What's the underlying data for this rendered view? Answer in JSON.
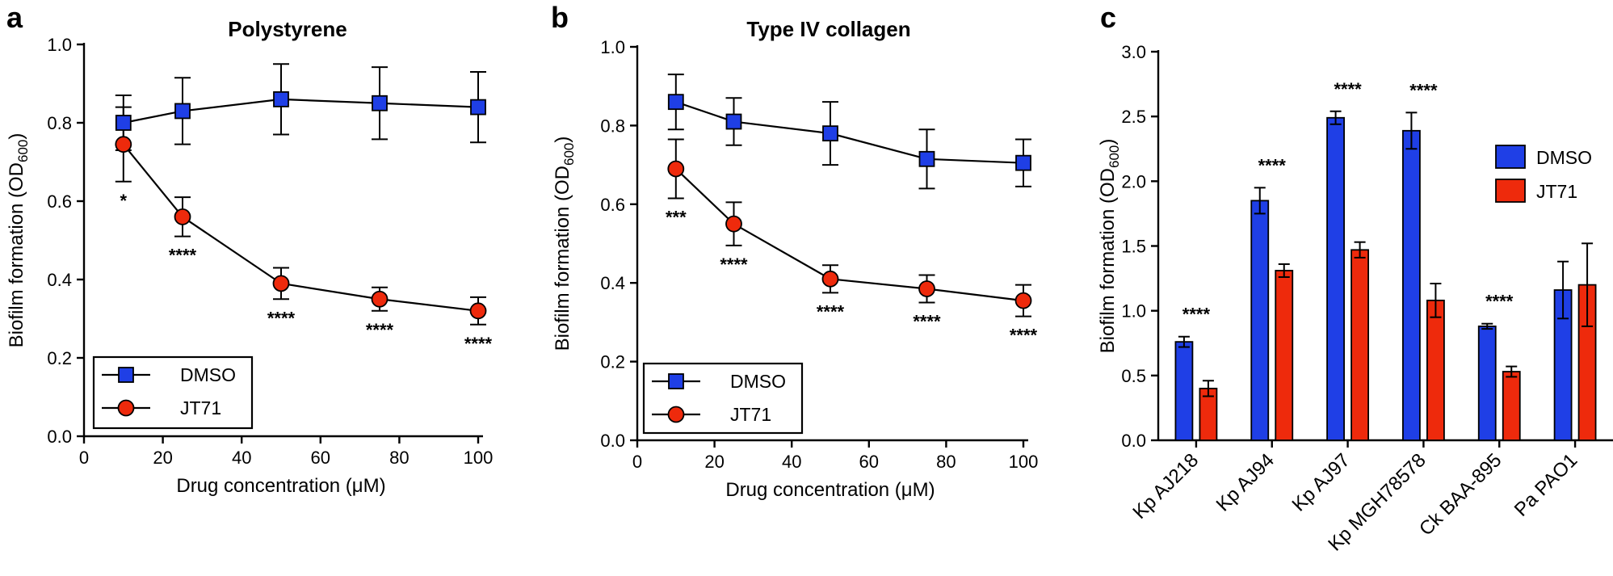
{
  "chart_data": [
    {
      "panel": "a",
      "type": "line",
      "title": "Polystyrene",
      "xlabel": "Drug concentration (μM)",
      "ylabel": "Biofilm formation (OD600)",
      "ylabel_main": "Biofilm formation (OD",
      "ylabel_sub": "600",
      "ylabel_close": ")",
      "xlim": [
        0,
        100
      ],
      "ylim": [
        0,
        1.0
      ],
      "xticks": [
        "0",
        "20",
        "40",
        "60",
        "80",
        "100"
      ],
      "yticks": [
        "0.0",
        "0.2",
        "0.4",
        "0.6",
        "0.8",
        "1.0"
      ],
      "x": [
        10,
        25,
        50,
        75,
        100
      ],
      "series": [
        {
          "name": "DMSO",
          "color": "#1f3fe6",
          "marker": "square",
          "values": [
            0.8,
            0.83,
            0.86,
            0.85,
            0.84
          ],
          "err": [
            0.07,
            0.085,
            0.09,
            0.092,
            0.09
          ]
        },
        {
          "name": "JT71",
          "color": "#ee2a0c",
          "marker": "circle",
          "values": [
            0.745,
            0.56,
            0.39,
            0.35,
            0.32
          ],
          "err": [
            0.095,
            0.05,
            0.04,
            0.03,
            0.035
          ]
        }
      ],
      "significance": [
        "*",
        "****",
        "****",
        "****",
        "****"
      ],
      "legend": "bottom-left"
    },
    {
      "panel": "b",
      "type": "line",
      "title": "Type IV collagen",
      "xlabel": "Drug concentration (μM)",
      "ylabel": "Biofilm formation (OD600)",
      "ylabel_main": "Biofilm formation (OD",
      "ylabel_sub": "600",
      "ylabel_close": ")",
      "xlim": [
        0,
        100
      ],
      "ylim": [
        0,
        1.0
      ],
      "xticks": [
        "0",
        "20",
        "40",
        "60",
        "80",
        "100"
      ],
      "yticks": [
        "0.0",
        "0.2",
        "0.4",
        "0.6",
        "0.8",
        "1.0"
      ],
      "x": [
        10,
        25,
        50,
        75,
        100
      ],
      "series": [
        {
          "name": "DMSO",
          "color": "#1f3fe6",
          "marker": "square",
          "values": [
            0.86,
            0.81,
            0.78,
            0.715,
            0.705
          ],
          "err": [
            0.07,
            0.06,
            0.08,
            0.075,
            0.06
          ]
        },
        {
          "name": "JT71",
          "color": "#ee2a0c",
          "marker": "circle",
          "values": [
            0.69,
            0.55,
            0.41,
            0.385,
            0.355
          ],
          "err": [
            0.075,
            0.055,
            0.035,
            0.035,
            0.04
          ]
        }
      ],
      "significance": [
        "***",
        "****",
        "****",
        "****",
        "****"
      ],
      "legend": "bottom-left"
    },
    {
      "panel": "c",
      "type": "bar",
      "title": "",
      "xlabel": "",
      "ylabel": "Biofilm formation (OD600)",
      "ylabel_main": "Biofilm formation (OD",
      "ylabel_sub": "600",
      "ylabel_close": ")",
      "ylim": [
        0,
        3.0
      ],
      "yticks": [
        "0.0",
        "0.5",
        "1.0",
        "1.5",
        "2.0",
        "2.5",
        "3.0"
      ],
      "categories": [
        "Kp AJ218",
        "Kp AJ94",
        "Kp AJ97",
        "Kp MGH78578",
        "Ck BAA-895",
        "Pa PAO1"
      ],
      "series": [
        {
          "name": "DMSO",
          "color": "#1f3fe6",
          "values": [
            0.76,
            1.85,
            2.49,
            2.39,
            0.88,
            1.16
          ],
          "err": [
            0.04,
            0.1,
            0.05,
            0.14,
            0.02,
            0.22
          ]
        },
        {
          "name": "JT71",
          "color": "#ee2a0c",
          "values": [
            0.4,
            1.31,
            1.47,
            1.08,
            0.53,
            1.2
          ],
          "err": [
            0.06,
            0.05,
            0.06,
            0.13,
            0.04,
            0.32
          ]
        }
      ],
      "significance": [
        "****",
        "****",
        "****",
        "****",
        "****",
        ""
      ],
      "legend": "right"
    }
  ]
}
